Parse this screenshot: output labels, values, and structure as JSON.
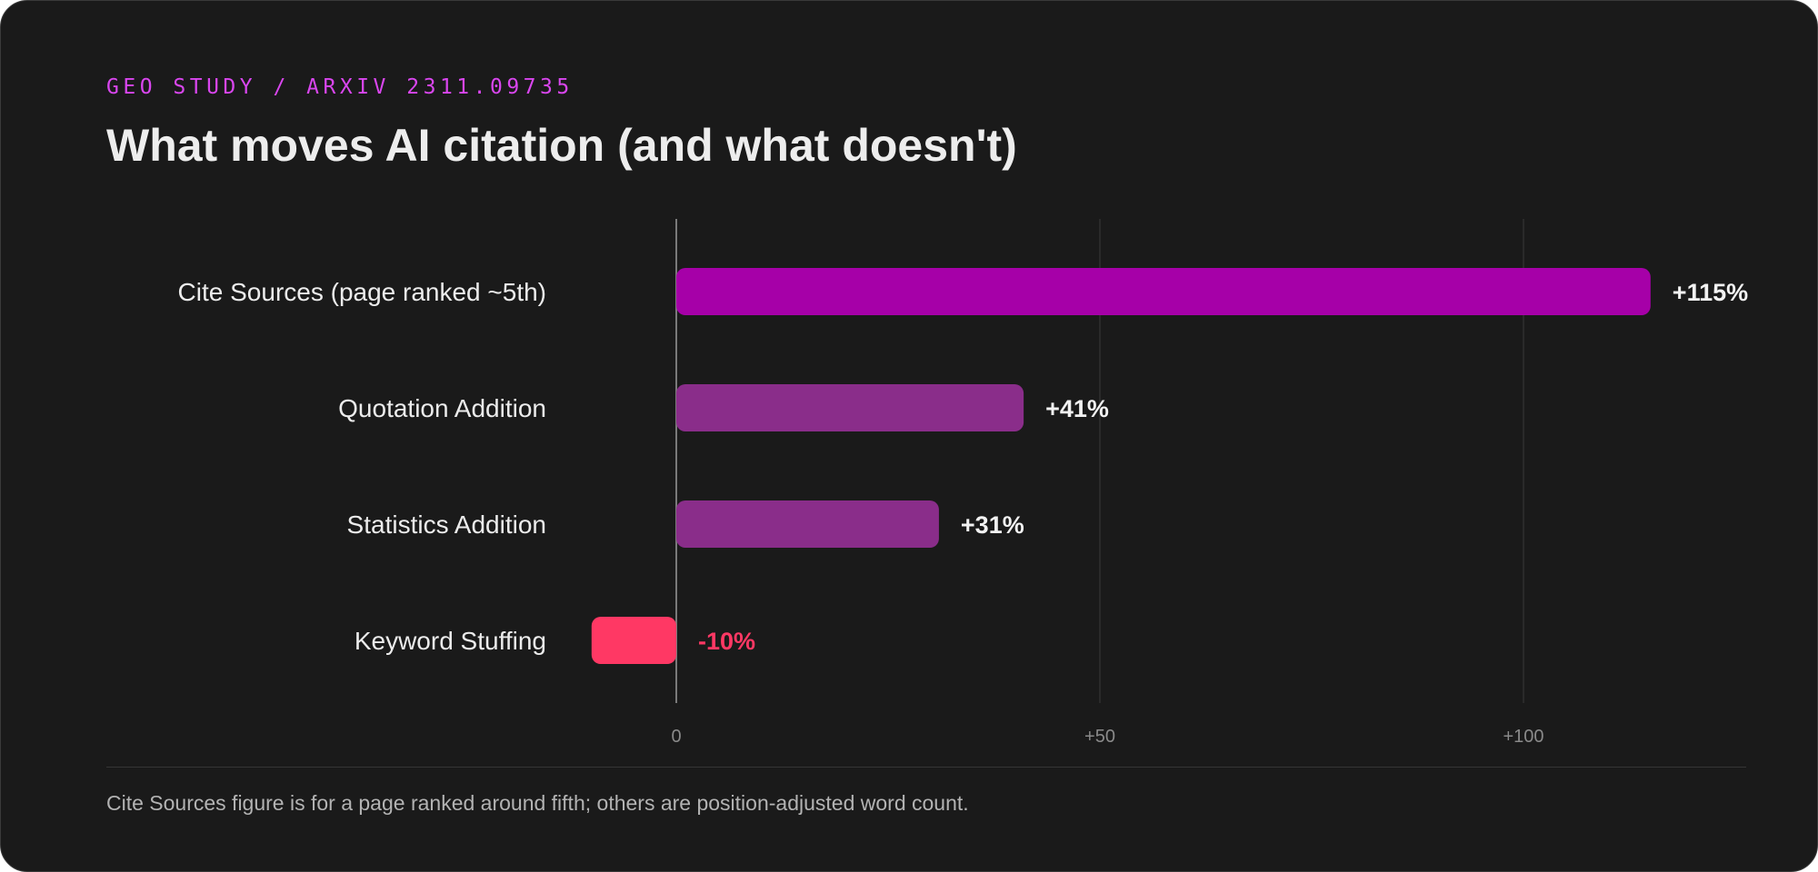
{
  "header": {
    "eyebrow": "GEO STUDY / ARXIV 2311.09735",
    "title": "What moves AI citation (and what doesn't)"
  },
  "chart_data": {
    "type": "bar",
    "orientation": "horizontal",
    "categories": [
      "Cite Sources (page ranked ~5th)",
      "Quotation Addition",
      "Statistics Addition",
      "Keyword Stuffing"
    ],
    "values": [
      115,
      41,
      31,
      -10
    ],
    "value_labels": [
      "+115%",
      "+41%",
      "+31%",
      "-10%"
    ],
    "bar_colors": [
      "#a600a8",
      "#8a2d8a",
      "#8a2d8a",
      "#ff3864"
    ],
    "value_label_colors": [
      "#f2f2f2",
      "#f2f2f2",
      "#f2f2f2",
      "#ff3864"
    ],
    "xlim": [
      -16,
      120
    ],
    "xticks": [
      0,
      50,
      100
    ],
    "xtick_labels": [
      "0",
      "+50",
      "+100"
    ],
    "grid": true,
    "title": "",
    "xlabel": "",
    "ylabel": ""
  },
  "footnote": "Cite Sources figure is for a page ranked around fifth; others are position-adjusted word count.",
  "colors": {
    "background": "#1a1a1a",
    "accent": "#d946ef",
    "grid": "#3a3a3a",
    "zero_line": "#7a7a7a"
  }
}
